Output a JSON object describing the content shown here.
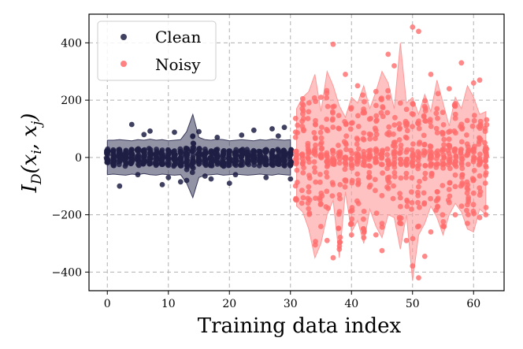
{
  "chart_data": {
    "type": "scatter",
    "xlabel": "Training data index",
    "ylabel_base": "I",
    "ylabel_sub": "D",
    "ylabel_args": "(x",
    "ylabel_i": "i",
    "ylabel_sep": ", x",
    "ylabel_j": "j",
    "ylabel_close": ")",
    "xlim": [
      -3,
      65
    ],
    "ylim": [
      -465,
      500
    ],
    "x_ticks": [
      0,
      10,
      20,
      30,
      40,
      50,
      60
    ],
    "y_ticks": [
      -400,
      -200,
      0,
      200,
      400
    ],
    "x_tick_labels": [
      "0",
      "10",
      "20",
      "30",
      "40",
      "50",
      "60"
    ],
    "y_tick_labels": [
      "−400",
      "−200",
      "0",
      "200",
      "400"
    ],
    "grid": true,
    "legend_position": "top-left",
    "series": [
      {
        "name": "Clean",
        "color": "#1f1f45",
        "band_color": "#3a3a5c",
        "x_range": [
          0,
          30
        ],
        "band_upper": [
          60,
          60,
          62,
          60,
          58,
          62,
          60,
          64,
          60,
          62,
          58,
          60,
          62,
          90,
          150,
          70,
          62,
          60,
          64,
          62,
          58,
          60,
          62,
          60,
          58,
          62,
          60,
          64,
          62,
          60,
          62
        ],
        "band_lower": [
          -60,
          -58,
          -60,
          -62,
          -58,
          -60,
          -56,
          -60,
          -62,
          -58,
          -60,
          -62,
          -60,
          -90,
          -140,
          -70,
          -62,
          -60,
          -58,
          -62,
          -60,
          -58,
          -60,
          -62,
          -60,
          -58,
          -60,
          -62,
          -58,
          -60,
          -62
        ],
        "extra_points": [
          [
            2,
            -100
          ],
          [
            4,
            115
          ],
          [
            5,
            -60
          ],
          [
            7,
            92
          ],
          [
            9,
            -95
          ],
          [
            11,
            88
          ],
          [
            13,
            -80
          ],
          [
            15,
            90
          ],
          [
            17,
            -75
          ],
          [
            18,
            70
          ],
          [
            20,
            -90
          ],
          [
            22,
            78
          ],
          [
            24,
            95
          ],
          [
            26,
            -70
          ],
          [
            27,
            100
          ],
          [
            28,
            75
          ],
          [
            29,
            105
          ],
          [
            30,
            -75
          ],
          [
            12,
            -85
          ],
          [
            16,
            -65
          ],
          [
            21,
            -60
          ],
          [
            14,
            75
          ],
          [
            6,
            80
          ],
          [
            10,
            -70
          ]
        ]
      },
      {
        "name": "Noisy",
        "color": "#ff6b6b",
        "band_color": "#ff9999",
        "x_range": [
          31,
          62
        ],
        "band_upper": [
          170,
          210,
          230,
          290,
          160,
          300,
          250,
          180,
          140,
          210,
          190,
          250,
          170,
          230,
          300,
          260,
          170,
          400,
          190,
          210,
          150,
          220,
          160,
          270,
          190,
          110,
          210,
          170,
          250,
          210,
          150,
          160
        ],
        "band_lower": [
          -170,
          -190,
          -250,
          -350,
          -300,
          -200,
          -150,
          -350,
          -120,
          -260,
          -220,
          -300,
          -180,
          -240,
          -280,
          -200,
          -210,
          -320,
          -200,
          -430,
          -270,
          -230,
          -170,
          -210,
          -270,
          -200,
          -160,
          -190,
          -250,
          -260,
          -180,
          -200
        ],
        "extra_points": [
          [
            37,
            395
          ],
          [
            39,
            290
          ],
          [
            46,
            360
          ],
          [
            47,
            320
          ],
          [
            50,
            455
          ],
          [
            51,
            440
          ],
          [
            58,
            330
          ],
          [
            60,
            260
          ],
          [
            61,
            270
          ],
          [
            32,
            205
          ],
          [
            35,
            210
          ],
          [
            41,
            250
          ],
          [
            44,
            230
          ],
          [
            48,
            190
          ],
          [
            53,
            290
          ],
          [
            56,
            240
          ],
          [
            36,
            -290
          ],
          [
            37,
            -350
          ],
          [
            38,
            -320
          ],
          [
            40,
            -270
          ],
          [
            42,
            -280
          ],
          [
            44,
            -270
          ],
          [
            45,
            -325
          ],
          [
            49,
            -290
          ],
          [
            51,
            -420
          ],
          [
            52,
            -345
          ],
          [
            53,
            -260
          ],
          [
            55,
            -240
          ],
          [
            57,
            -200
          ],
          [
            59,
            -230
          ],
          [
            61,
            -210
          ],
          [
            33,
            -120
          ],
          [
            42,
            160
          ],
          [
            54,
            170
          ],
          [
            62,
            -200
          ]
        ]
      }
    ]
  }
}
